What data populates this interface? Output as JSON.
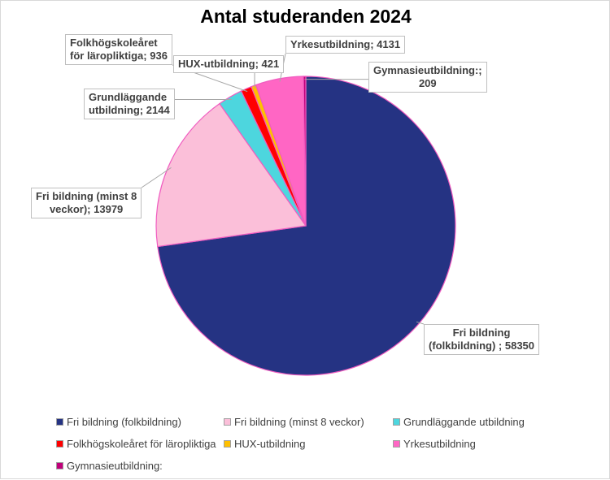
{
  "chart_data": {
    "type": "pie",
    "title": "Antal studeranden 2024",
    "slices": [
      {
        "name": "Fri bildning (folkbildning)",
        "value": 58350,
        "color": "#253383",
        "label": "Fri bildning\n(folkbildning)  ; 58350"
      },
      {
        "name": "Fri bildning (minst 8 veckor)",
        "value": 13979,
        "color": "#fbbfd9",
        "label": "Fri bildning (minst 8\nveckor); 13979"
      },
      {
        "name": "Grundläggande utbildning",
        "value": 2144,
        "color": "#4dd6de",
        "label": "Grundläggande\nutbildning; 2144"
      },
      {
        "name": "Folkhögskoleåret för läropliktiga",
        "value": 936,
        "color": "#ff0000",
        "label": "Folkhögskoleåret\nför läropliktiga; 936"
      },
      {
        "name": "HUX-utbildning",
        "value": 421,
        "color": "#ffc000",
        "label": "HUX-utbildning; 421"
      },
      {
        "name": "Yrkesutbildning",
        "value": 4131,
        "color": "#ff66c4",
        "label": "Yrkesutbildning; 4131"
      },
      {
        "name": "Gymnasieutbildning:",
        "value": 209,
        "color": "#c0007a",
        "label": "Gymnasieutbildning:;\n209"
      }
    ],
    "legend": {
      "position": "bottom"
    }
  }
}
